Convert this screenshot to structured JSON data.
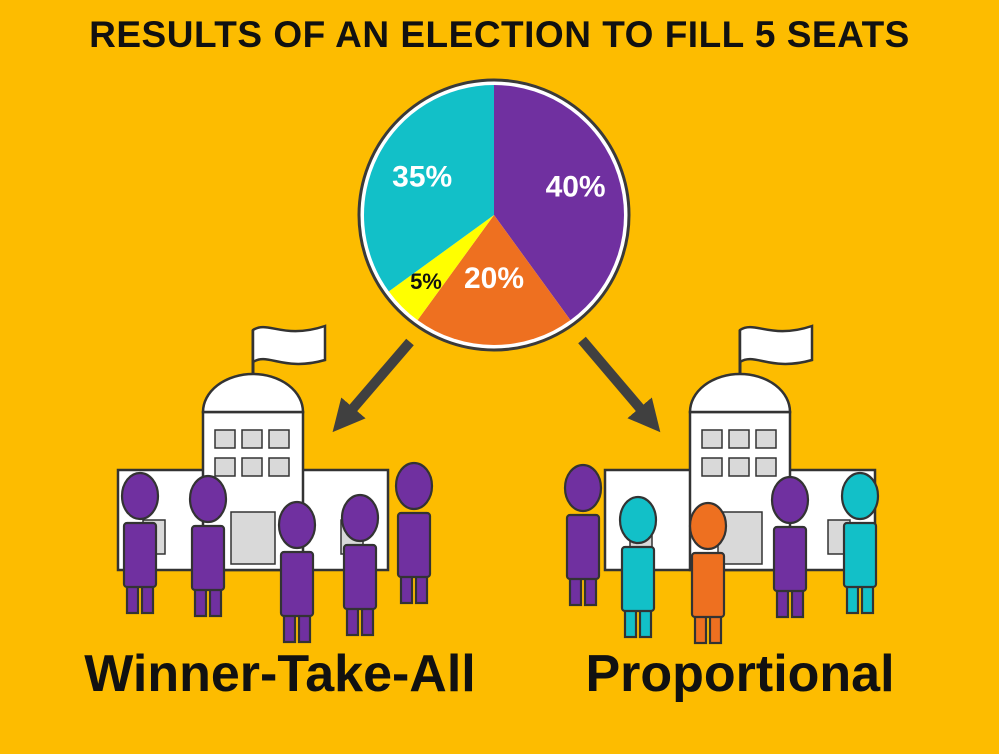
{
  "title": "RESULTS OF AN ELECTION TO FILL 5 SEATS",
  "colors": {
    "background": "#FDBC00",
    "purple": "#7030A0",
    "orange": "#EE7020",
    "teal": "#12C0C8",
    "yellow": "#FFFF00",
    "building": "#FFFFFF",
    "arrow": "#404040"
  },
  "chart_data": {
    "type": "pie",
    "slices": [
      {
        "label": "40%",
        "value": 40,
        "color": "#7030A0",
        "label_color": "#FFFFFF"
      },
      {
        "label": "20%",
        "value": 20,
        "color": "#EE7020",
        "label_color": "#FFFFFF"
      },
      {
        "label": "5%",
        "value": 5,
        "color": "#FFFF00",
        "label_color": "#111111"
      },
      {
        "label": "35%",
        "value": 35,
        "color": "#12C0C8",
        "label_color": "#FFFFFF"
      }
    ]
  },
  "outcomes": [
    {
      "label": "Winner-Take-All",
      "seats": [
        "purple",
        "purple",
        "purple",
        "purple",
        "purple"
      ]
    },
    {
      "label": "Proportional",
      "seats": [
        "purple",
        "teal",
        "orange",
        "purple",
        "teal"
      ]
    }
  ]
}
